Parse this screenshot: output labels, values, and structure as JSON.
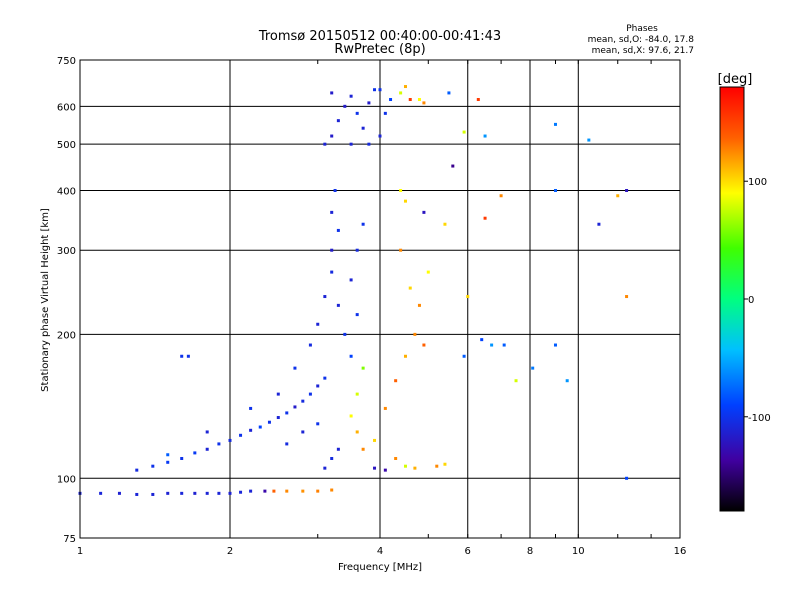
{
  "chart_data": {
    "type": "scatter",
    "title": "Tromsø 20150512 00:40:00-00:41:43",
    "subtitle": "RwPretec (8p)",
    "xlabel": "Frequency [MHz]",
    "ylabel": "Stationary phase Virtual Height [km]",
    "x_scale": "log",
    "y_scale": "log",
    "xlim": [
      1,
      16
    ],
    "ylim": [
      75,
      750
    ],
    "x_ticks": [
      "1",
      "2",
      "4",
      "6",
      "8",
      "10",
      "16"
    ],
    "y_ticks": [
      "75",
      "100",
      "200",
      "300",
      "400",
      "500",
      "600",
      "750"
    ],
    "grid": true,
    "legend": {
      "title": "Phases",
      "line1": "mean, sd,O: -84.0, 17.8",
      "line2": "mean, sd,X:  97.6, 21.7"
    },
    "colorbar": {
      "label": "[deg]",
      "ticks": [
        "100",
        "0",
        "-100"
      ],
      "tick_values": [
        100,
        0,
        -100
      ],
      "range": [
        -180,
        180
      ]
    },
    "points": [
      [
        1.0,
        93,
        -110
      ],
      [
        1.1,
        93,
        -108
      ],
      [
        1.2,
        93,
        -112
      ],
      [
        1.3,
        92.5,
        -109
      ],
      [
        1.4,
        92.5,
        -110
      ],
      [
        1.5,
        93,
        -111
      ],
      [
        1.6,
        93,
        -108
      ],
      [
        1.7,
        93,
        -112
      ],
      [
        1.8,
        93,
        -110
      ],
      [
        1.9,
        93,
        -109
      ],
      [
        2.0,
        93,
        -111
      ],
      [
        2.1,
        93.5,
        -108
      ],
      [
        2.2,
        94,
        -110
      ],
      [
        2.35,
        94,
        -130
      ],
      [
        2.45,
        94,
        130
      ],
      [
        2.6,
        94,
        120
      ],
      [
        2.8,
        94,
        118
      ],
      [
        3.0,
        94,
        122
      ],
      [
        3.2,
        94.5,
        120
      ],
      [
        1.3,
        104,
        -105
      ],
      [
        1.4,
        106,
        -100
      ],
      [
        1.5,
        108,
        -95
      ],
      [
        1.6,
        110,
        -100
      ],
      [
        1.7,
        113,
        -95
      ],
      [
        1.8,
        115,
        -110
      ],
      [
        1.9,
        118,
        -100
      ],
      [
        2.0,
        120,
        -105
      ],
      [
        2.1,
        123,
        -100
      ],
      [
        2.2,
        126,
        -110
      ],
      [
        2.3,
        128,
        -90
      ],
      [
        2.4,
        131,
        -100
      ],
      [
        2.5,
        134,
        -110
      ],
      [
        2.6,
        137,
        -100
      ],
      [
        2.7,
        141,
        -115
      ],
      [
        2.8,
        145,
        -105
      ],
      [
        2.9,
        150,
        -100
      ],
      [
        3.0,
        156,
        -110
      ],
      [
        3.1,
        162,
        -100
      ],
      [
        1.5,
        112,
        -80
      ],
      [
        1.8,
        125,
        -110
      ],
      [
        2.2,
        140,
        -100
      ],
      [
        2.5,
        150,
        -110
      ],
      [
        2.7,
        170,
        -100
      ],
      [
        2.9,
        190,
        -105
      ],
      [
        3.0,
        210,
        -110
      ],
      [
        3.1,
        240,
        -110
      ],
      [
        3.2,
        270,
        -105
      ],
      [
        3.2,
        300,
        -115
      ],
      [
        3.3,
        330,
        -100
      ],
      [
        3.2,
        360,
        -110
      ],
      [
        3.25,
        400,
        -100
      ],
      [
        3.3,
        230,
        -110
      ],
      [
        3.4,
        200,
        -100
      ],
      [
        3.5,
        180,
        -90
      ],
      [
        3.6,
        220,
        -100
      ],
      [
        3.5,
        260,
        -110
      ],
      [
        3.6,
        300,
        -105
      ],
      [
        3.7,
        340,
        -100
      ],
      [
        1.6,
        180,
        -100
      ],
      [
        1.65,
        180,
        -100
      ],
      [
        3.1,
        500,
        -110
      ],
      [
        3.2,
        520,
        -115
      ],
      [
        3.3,
        560,
        -110
      ],
      [
        3.4,
        600,
        -115
      ],
      [
        3.5,
        630,
        -110
      ],
      [
        3.6,
        580,
        -100
      ],
      [
        3.7,
        540,
        -110
      ],
      [
        3.8,
        610,
        -115
      ],
      [
        3.9,
        650,
        -100
      ],
      [
        4.0,
        520,
        -110
      ],
      [
        4.1,
        580,
        -100
      ],
      [
        4.2,
        620,
        -90
      ],
      [
        3.2,
        640,
        -115
      ],
      [
        3.5,
        500,
        -110
      ],
      [
        3.8,
        500,
        -105
      ],
      [
        4.0,
        650,
        -100
      ],
      [
        4.4,
        640,
        80
      ],
      [
        4.5,
        660,
        110
      ],
      [
        4.6,
        620,
        150
      ],
      [
        4.8,
        620,
        90
      ],
      [
        4.9,
        610,
        120
      ],
      [
        5.5,
        640,
        -80
      ],
      [
        6.3,
        620,
        150
      ],
      [
        5.6,
        450,
        -140
      ],
      [
        5.9,
        530,
        80
      ],
      [
        6.5,
        520,
        -60
      ],
      [
        9.0,
        550,
        -70
      ],
      [
        10.5,
        510,
        -60
      ],
      [
        4.4,
        400,
        90
      ],
      [
        4.5,
        380,
        100
      ],
      [
        4.9,
        360,
        -120
      ],
      [
        5.4,
        340,
        100
      ],
      [
        6.5,
        350,
        150
      ],
      [
        7.0,
        390,
        120
      ],
      [
        9.0,
        400,
        -80
      ],
      [
        11.0,
        340,
        -110
      ],
      [
        12.0,
        390,
        110
      ],
      [
        12.5,
        400,
        -120
      ],
      [
        3.7,
        170,
        60
      ],
      [
        3.6,
        150,
        80
      ],
      [
        3.5,
        135,
        90
      ],
      [
        3.6,
        125,
        110
      ],
      [
        3.7,
        115,
        120
      ],
      [
        3.9,
        120,
        100
      ],
      [
        4.1,
        140,
        120
      ],
      [
        4.3,
        160,
        130
      ],
      [
        4.5,
        180,
        110
      ],
      [
        4.7,
        200,
        120
      ],
      [
        4.9,
        190,
        130
      ],
      [
        4.4,
        300,
        120
      ],
      [
        4.6,
        250,
        100
      ],
      [
        4.8,
        230,
        120
      ],
      [
        5.0,
        270,
        90
      ],
      [
        4.3,
        110,
        120
      ],
      [
        4.5,
        106,
        80
      ],
      [
        4.7,
        105,
        110
      ],
      [
        5.2,
        106,
        120
      ],
      [
        5.4,
        107,
        100
      ],
      [
        3.9,
        105,
        -120
      ],
      [
        4.1,
        104,
        -130
      ],
      [
        6.4,
        195,
        -90
      ],
      [
        6.7,
        190,
        -60
      ],
      [
        7.1,
        190,
        -80
      ],
      [
        8.1,
        170,
        -70
      ],
      [
        9.0,
        190,
        -80
      ],
      [
        9.5,
        160,
        -60
      ],
      [
        12.5,
        100,
        -90
      ],
      [
        5.9,
        180,
        -80
      ],
      [
        7.5,
        160,
        80
      ],
      [
        6.0,
        240,
        100
      ],
      [
        12.5,
        240,
        120
      ],
      [
        3.1,
        105,
        -110
      ],
      [
        3.2,
        110,
        -105
      ],
      [
        3.3,
        115,
        -110
      ],
      [
        3.0,
        130,
        -100
      ],
      [
        2.8,
        125,
        -110
      ],
      [
        2.6,
        118,
        -105
      ]
    ]
  }
}
